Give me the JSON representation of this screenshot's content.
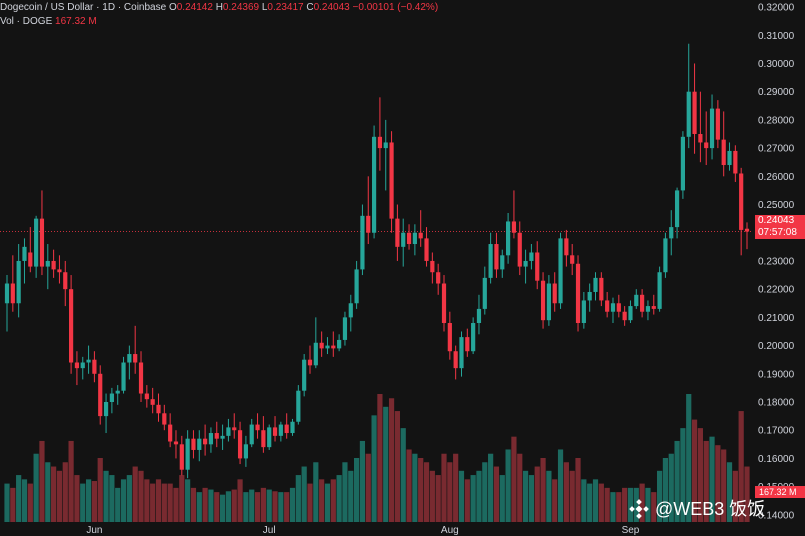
{
  "header": {
    "symbol": "Dogecoin / US Dollar · 1D · Coinbase",
    "o_label": "O",
    "o": "0.24142",
    "h_label": "H",
    "h": "0.24369",
    "l_label": "L",
    "l": "0.23417",
    "c_label": "C",
    "c": "0.24043",
    "change": "−0.00101 (−0.42%)",
    "vol_label": "Vol · DOGE",
    "vol": "167.32 M"
  },
  "price_badge": {
    "price": "0.24043",
    "countdown": "07:57:08"
  },
  "volume_badge": "167.32 M",
  "watermark": "@WEB3 饭饭",
  "colors": {
    "up": "#26a69a",
    "down": "#f23645",
    "background": "#131313",
    "text": "#d1d4dc"
  },
  "chart_data": {
    "type": "candlestick",
    "ylim": [
      0.1325,
      0.3225
    ],
    "y_ticks": [
      "0.14000",
      "0.15000",
      "0.16000",
      "0.17000",
      "0.18000",
      "0.19000",
      "0.20000",
      "0.21000",
      "0.22000",
      "0.23000",
      "0.24000",
      "0.25000",
      "0.26000",
      "0.27000",
      "0.28000",
      "0.29000",
      "0.30000",
      "0.31000",
      "0.32000"
    ],
    "x_ticks": [
      {
        "label": "Jun",
        "index": 15
      },
      {
        "label": "Jul",
        "index": 45
      },
      {
        "label": "Aug",
        "index": 76
      },
      {
        "label": "Sep",
        "index": 107
      }
    ],
    "last_price": 0.24043,
    "candles": [
      {
        "o": 0.215,
        "h": 0.225,
        "l": 0.205,
        "c": 0.222,
        "v": 45
      },
      {
        "o": 0.222,
        "h": 0.232,
        "l": 0.212,
        "c": 0.215,
        "v": 40
      },
      {
        "o": 0.215,
        "h": 0.236,
        "l": 0.21,
        "c": 0.23,
        "v": 55
      },
      {
        "o": 0.23,
        "h": 0.238,
        "l": 0.222,
        "c": 0.235,
        "v": 50
      },
      {
        "o": 0.233,
        "h": 0.242,
        "l": 0.226,
        "c": 0.228,
        "v": 45
      },
      {
        "o": 0.228,
        "h": 0.246,
        "l": 0.224,
        "c": 0.245,
        "v": 80
      },
      {
        "o": 0.245,
        "h": 0.255,
        "l": 0.225,
        "c": 0.228,
        "v": 95
      },
      {
        "o": 0.228,
        "h": 0.236,
        "l": 0.22,
        "c": 0.23,
        "v": 70
      },
      {
        "o": 0.23,
        "h": 0.234,
        "l": 0.224,
        "c": 0.227,
        "v": 65
      },
      {
        "o": 0.227,
        "h": 0.232,
        "l": 0.222,
        "c": 0.226,
        "v": 60
      },
      {
        "o": 0.226,
        "h": 0.23,
        "l": 0.214,
        "c": 0.22,
        "v": 70
      },
      {
        "o": 0.22,
        "h": 0.225,
        "l": 0.19,
        "c": 0.194,
        "v": 95
      },
      {
        "o": 0.194,
        "h": 0.198,
        "l": 0.186,
        "c": 0.192,
        "v": 55
      },
      {
        "o": 0.192,
        "h": 0.196,
        "l": 0.188,
        "c": 0.194,
        "v": 45
      },
      {
        "o": 0.194,
        "h": 0.2,
        "l": 0.19,
        "c": 0.195,
        "v": 50
      },
      {
        "o": 0.195,
        "h": 0.198,
        "l": 0.187,
        "c": 0.19,
        "v": 48
      },
      {
        "o": 0.19,
        "h": 0.193,
        "l": 0.172,
        "c": 0.175,
        "v": 75
      },
      {
        "o": 0.175,
        "h": 0.183,
        "l": 0.169,
        "c": 0.18,
        "v": 60
      },
      {
        "o": 0.18,
        "h": 0.185,
        "l": 0.176,
        "c": 0.183,
        "v": 55
      },
      {
        "o": 0.183,
        "h": 0.186,
        "l": 0.179,
        "c": 0.184,
        "v": 40
      },
      {
        "o": 0.184,
        "h": 0.196,
        "l": 0.183,
        "c": 0.194,
        "v": 50
      },
      {
        "o": 0.194,
        "h": 0.2,
        "l": 0.188,
        "c": 0.197,
        "v": 55
      },
      {
        "o": 0.197,
        "h": 0.207,
        "l": 0.19,
        "c": 0.194,
        "v": 65
      },
      {
        "o": 0.194,
        "h": 0.198,
        "l": 0.18,
        "c": 0.183,
        "v": 60
      },
      {
        "o": 0.183,
        "h": 0.186,
        "l": 0.178,
        "c": 0.181,
        "v": 50
      },
      {
        "o": 0.181,
        "h": 0.185,
        "l": 0.176,
        "c": 0.179,
        "v": 45
      },
      {
        "o": 0.179,
        "h": 0.183,
        "l": 0.173,
        "c": 0.176,
        "v": 50
      },
      {
        "o": 0.176,
        "h": 0.179,
        "l": 0.17,
        "c": 0.172,
        "v": 45
      },
      {
        "o": 0.172,
        "h": 0.176,
        "l": 0.164,
        "c": 0.166,
        "v": 45
      },
      {
        "o": 0.166,
        "h": 0.17,
        "l": 0.16,
        "c": 0.165,
        "v": 40
      },
      {
        "o": 0.165,
        "h": 0.168,
        "l": 0.154,
        "c": 0.156,
        "v": 55
      },
      {
        "o": 0.156,
        "h": 0.17,
        "l": 0.153,
        "c": 0.167,
        "v": 50
      },
      {
        "o": 0.167,
        "h": 0.17,
        "l": 0.16,
        "c": 0.163,
        "v": 40
      },
      {
        "o": 0.163,
        "h": 0.17,
        "l": 0.159,
        "c": 0.167,
        "v": 35
      },
      {
        "o": 0.167,
        "h": 0.172,
        "l": 0.161,
        "c": 0.165,
        "v": 40
      },
      {
        "o": 0.165,
        "h": 0.171,
        "l": 0.162,
        "c": 0.169,
        "v": 38
      },
      {
        "o": 0.169,
        "h": 0.173,
        "l": 0.164,
        "c": 0.167,
        "v": 35
      },
      {
        "o": 0.167,
        "h": 0.172,
        "l": 0.163,
        "c": 0.168,
        "v": 32
      },
      {
        "o": 0.168,
        "h": 0.174,
        "l": 0.166,
        "c": 0.171,
        "v": 36
      },
      {
        "o": 0.171,
        "h": 0.176,
        "l": 0.167,
        "c": 0.17,
        "v": 38
      },
      {
        "o": 0.17,
        "h": 0.173,
        "l": 0.158,
        "c": 0.16,
        "v": 50
      },
      {
        "o": 0.16,
        "h": 0.168,
        "l": 0.157,
        "c": 0.165,
        "v": 35
      },
      {
        "o": 0.165,
        "h": 0.174,
        "l": 0.164,
        "c": 0.172,
        "v": 38
      },
      {
        "o": 0.172,
        "h": 0.176,
        "l": 0.167,
        "c": 0.17,
        "v": 35
      },
      {
        "o": 0.17,
        "h": 0.175,
        "l": 0.162,
        "c": 0.164,
        "v": 40
      },
      {
        "o": 0.164,
        "h": 0.172,
        "l": 0.163,
        "c": 0.171,
        "v": 38
      },
      {
        "o": 0.171,
        "h": 0.175,
        "l": 0.166,
        "c": 0.168,
        "v": 36
      },
      {
        "o": 0.168,
        "h": 0.173,
        "l": 0.166,
        "c": 0.172,
        "v": 35
      },
      {
        "o": 0.172,
        "h": 0.176,
        "l": 0.167,
        "c": 0.169,
        "v": 35
      },
      {
        "o": 0.169,
        "h": 0.174,
        "l": 0.168,
        "c": 0.173,
        "v": 40
      },
      {
        "o": 0.173,
        "h": 0.186,
        "l": 0.172,
        "c": 0.184,
        "v": 55
      },
      {
        "o": 0.184,
        "h": 0.197,
        "l": 0.182,
        "c": 0.195,
        "v": 65
      },
      {
        "o": 0.195,
        "h": 0.2,
        "l": 0.19,
        "c": 0.193,
        "v": 45
      },
      {
        "o": 0.193,
        "h": 0.21,
        "l": 0.192,
        "c": 0.201,
        "v": 70
      },
      {
        "o": 0.201,
        "h": 0.205,
        "l": 0.196,
        "c": 0.199,
        "v": 50
      },
      {
        "o": 0.199,
        "h": 0.203,
        "l": 0.197,
        "c": 0.2,
        "v": 45
      },
      {
        "o": 0.2,
        "h": 0.205,
        "l": 0.196,
        "c": 0.199,
        "v": 50
      },
      {
        "o": 0.199,
        "h": 0.204,
        "l": 0.198,
        "c": 0.202,
        "v": 55
      },
      {
        "o": 0.202,
        "h": 0.212,
        "l": 0.2,
        "c": 0.21,
        "v": 70
      },
      {
        "o": 0.21,
        "h": 0.218,
        "l": 0.205,
        "c": 0.215,
        "v": 60
      },
      {
        "o": 0.215,
        "h": 0.23,
        "l": 0.213,
        "c": 0.227,
        "v": 75
      },
      {
        "o": 0.227,
        "h": 0.25,
        "l": 0.225,
        "c": 0.246,
        "v": 95
      },
      {
        "o": 0.246,
        "h": 0.26,
        "l": 0.236,
        "c": 0.24,
        "v": 80
      },
      {
        "o": 0.24,
        "h": 0.278,
        "l": 0.238,
        "c": 0.274,
        "v": 125
      },
      {
        "o": 0.274,
        "h": 0.288,
        "l": 0.262,
        "c": 0.27,
        "v": 150
      },
      {
        "o": 0.27,
        "h": 0.28,
        "l": 0.255,
        "c": 0.272,
        "v": 135
      },
      {
        "o": 0.272,
        "h": 0.276,
        "l": 0.24,
        "c": 0.245,
        "v": 145
      },
      {
        "o": 0.245,
        "h": 0.25,
        "l": 0.23,
        "c": 0.235,
        "v": 130
      },
      {
        "o": 0.235,
        "h": 0.245,
        "l": 0.228,
        "c": 0.24,
        "v": 110
      },
      {
        "o": 0.24,
        "h": 0.243,
        "l": 0.234,
        "c": 0.236,
        "v": 85
      },
      {
        "o": 0.236,
        "h": 0.243,
        "l": 0.232,
        "c": 0.24,
        "v": 80
      },
      {
        "o": 0.24,
        "h": 0.248,
        "l": 0.235,
        "c": 0.238,
        "v": 75
      },
      {
        "o": 0.238,
        "h": 0.242,
        "l": 0.228,
        "c": 0.23,
        "v": 70
      },
      {
        "o": 0.23,
        "h": 0.233,
        "l": 0.222,
        "c": 0.226,
        "v": 60
      },
      {
        "o": 0.226,
        "h": 0.229,
        "l": 0.218,
        "c": 0.222,
        "v": 55
      },
      {
        "o": 0.222,
        "h": 0.225,
        "l": 0.205,
        "c": 0.208,
        "v": 80
      },
      {
        "o": 0.208,
        "h": 0.212,
        "l": 0.195,
        "c": 0.198,
        "v": 70
      },
      {
        "o": 0.198,
        "h": 0.2,
        "l": 0.188,
        "c": 0.192,
        "v": 80
      },
      {
        "o": 0.192,
        "h": 0.205,
        "l": 0.189,
        "c": 0.203,
        "v": 60
      },
      {
        "o": 0.203,
        "h": 0.206,
        "l": 0.196,
        "c": 0.198,
        "v": 50
      },
      {
        "o": 0.198,
        "h": 0.21,
        "l": 0.197,
        "c": 0.208,
        "v": 55
      },
      {
        "o": 0.208,
        "h": 0.218,
        "l": 0.204,
        "c": 0.213,
        "v": 60
      },
      {
        "o": 0.213,
        "h": 0.228,
        "l": 0.211,
        "c": 0.224,
        "v": 70
      },
      {
        "o": 0.224,
        "h": 0.24,
        "l": 0.222,
        "c": 0.236,
        "v": 80
      },
      {
        "o": 0.236,
        "h": 0.24,
        "l": 0.224,
        "c": 0.227,
        "v": 65
      },
      {
        "o": 0.227,
        "h": 0.234,
        "l": 0.224,
        "c": 0.232,
        "v": 55
      },
      {
        "o": 0.232,
        "h": 0.247,
        "l": 0.229,
        "c": 0.244,
        "v": 85
      },
      {
        "o": 0.244,
        "h": 0.255,
        "l": 0.238,
        "c": 0.24,
        "v": 100
      },
      {
        "o": 0.24,
        "h": 0.244,
        "l": 0.225,
        "c": 0.228,
        "v": 80
      },
      {
        "o": 0.228,
        "h": 0.234,
        "l": 0.222,
        "c": 0.23,
        "v": 60
      },
      {
        "o": 0.23,
        "h": 0.236,
        "l": 0.227,
        "c": 0.233,
        "v": 55
      },
      {
        "o": 0.233,
        "h": 0.237,
        "l": 0.22,
        "c": 0.223,
        "v": 65
      },
      {
        "o": 0.223,
        "h": 0.226,
        "l": 0.206,
        "c": 0.209,
        "v": 75
      },
      {
        "o": 0.209,
        "h": 0.225,
        "l": 0.207,
        "c": 0.222,
        "v": 60
      },
      {
        "o": 0.222,
        "h": 0.226,
        "l": 0.212,
        "c": 0.215,
        "v": 50
      },
      {
        "o": 0.215,
        "h": 0.24,
        "l": 0.213,
        "c": 0.238,
        "v": 85
      },
      {
        "o": 0.238,
        "h": 0.241,
        "l": 0.228,
        "c": 0.232,
        "v": 70
      },
      {
        "o": 0.232,
        "h": 0.236,
        "l": 0.225,
        "c": 0.229,
        "v": 60
      },
      {
        "o": 0.229,
        "h": 0.232,
        "l": 0.205,
        "c": 0.208,
        "v": 75
      },
      {
        "o": 0.208,
        "h": 0.219,
        "l": 0.206,
        "c": 0.216,
        "v": 50
      },
      {
        "o": 0.216,
        "h": 0.222,
        "l": 0.212,
        "c": 0.219,
        "v": 45
      },
      {
        "o": 0.219,
        "h": 0.226,
        "l": 0.216,
        "c": 0.224,
        "v": 50
      },
      {
        "o": 0.224,
        "h": 0.226,
        "l": 0.214,
        "c": 0.216,
        "v": 45
      },
      {
        "o": 0.216,
        "h": 0.219,
        "l": 0.21,
        "c": 0.212,
        "v": 40
      },
      {
        "o": 0.212,
        "h": 0.217,
        "l": 0.208,
        "c": 0.215,
        "v": 35
      },
      {
        "o": 0.215,
        "h": 0.218,
        "l": 0.21,
        "c": 0.212,
        "v": 35
      },
      {
        "o": 0.212,
        "h": 0.214,
        "l": 0.207,
        "c": 0.209,
        "v": 40
      },
      {
        "o": 0.209,
        "h": 0.216,
        "l": 0.208,
        "c": 0.214,
        "v": 40
      },
      {
        "o": 0.214,
        "h": 0.22,
        "l": 0.213,
        "c": 0.218,
        "v": 40
      },
      {
        "o": 0.218,
        "h": 0.22,
        "l": 0.21,
        "c": 0.212,
        "v": 45
      },
      {
        "o": 0.212,
        "h": 0.216,
        "l": 0.209,
        "c": 0.214,
        "v": 40
      },
      {
        "o": 0.214,
        "h": 0.218,
        "l": 0.211,
        "c": 0.213,
        "v": 35
      },
      {
        "o": 0.213,
        "h": 0.228,
        "l": 0.212,
        "c": 0.226,
        "v": 60
      },
      {
        "o": 0.226,
        "h": 0.24,
        "l": 0.224,
        "c": 0.238,
        "v": 75
      },
      {
        "o": 0.238,
        "h": 0.248,
        "l": 0.232,
        "c": 0.242,
        "v": 80
      },
      {
        "o": 0.242,
        "h": 0.256,
        "l": 0.238,
        "c": 0.255,
        "v": 95
      },
      {
        "o": 0.255,
        "h": 0.276,
        "l": 0.252,
        "c": 0.274,
        "v": 110
      },
      {
        "o": 0.274,
        "h": 0.307,
        "l": 0.27,
        "c": 0.29,
        "v": 150
      },
      {
        "o": 0.29,
        "h": 0.3,
        "l": 0.268,
        "c": 0.275,
        "v": 120
      },
      {
        "o": 0.275,
        "h": 0.29,
        "l": 0.265,
        "c": 0.272,
        "v": 110
      },
      {
        "o": 0.272,
        "h": 0.283,
        "l": 0.264,
        "c": 0.27,
        "v": 95
      },
      {
        "o": 0.27,
        "h": 0.289,
        "l": 0.266,
        "c": 0.284,
        "v": 100
      },
      {
        "o": 0.284,
        "h": 0.287,
        "l": 0.27,
        "c": 0.273,
        "v": 90
      },
      {
        "o": 0.273,
        "h": 0.283,
        "l": 0.26,
        "c": 0.264,
        "v": 85
      },
      {
        "o": 0.264,
        "h": 0.272,
        "l": 0.262,
        "c": 0.269,
        "v": 70
      },
      {
        "o": 0.269,
        "h": 0.271,
        "l": 0.258,
        "c": 0.261,
        "v": 60
      },
      {
        "o": 0.261,
        "h": 0.263,
        "l": 0.232,
        "c": 0.241,
        "v": 130
      },
      {
        "o": 0.24142,
        "h": 0.24369,
        "l": 0.23417,
        "c": 0.24043,
        "v": 65
      }
    ]
  }
}
